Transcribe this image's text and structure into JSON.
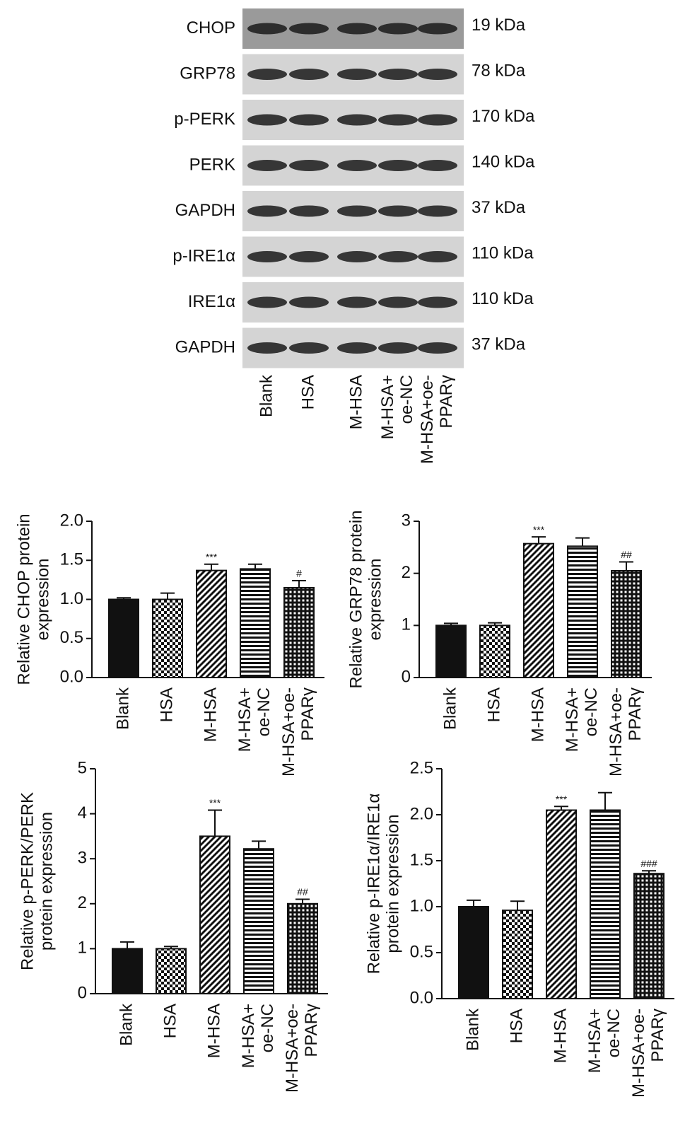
{
  "blot": {
    "rows": [
      {
        "label": "CHOP",
        "size": "19 kDa"
      },
      {
        "label": "GRP78",
        "size": "78 kDa"
      },
      {
        "label": "p-PERK",
        "size": "170 kDa"
      },
      {
        "label": "PERK",
        "size": "140 kDa"
      },
      {
        "label": "GAPDH",
        "size": "37 kDa"
      },
      {
        "label": "p-IRE1α",
        "size": "110 kDa"
      },
      {
        "label": "IRE1α",
        "size": "110 kDa"
      },
      {
        "label": "GAPDH",
        "size": "37 kDa"
      }
    ],
    "lanes": [
      [
        "Blank"
      ],
      [
        "HSA"
      ],
      [
        "M-HSA"
      ],
      [
        "M-HSA+",
        "oe-NC"
      ],
      [
        "M-HSA+oe-",
        "PPARγ"
      ]
    ]
  },
  "chart_data": [
    {
      "type": "bar",
      "ylabel": [
        "Relative CHOP protein",
        "expression"
      ],
      "categories": [
        [
          "Blank"
        ],
        [
          "HSA"
        ],
        [
          "M-HSA"
        ],
        [
          "M-HSA+",
          "oe-NC"
        ],
        [
          "M-HSA+oe-",
          "PPARγ"
        ]
      ],
      "values": [
        1.0,
        1.0,
        1.37,
        1.39,
        1.15
      ],
      "errors": [
        0.02,
        0.08,
        0.08,
        0.06,
        0.09
      ],
      "fills": [
        "solid",
        "checker",
        "diagonal",
        "horizontal",
        "grid"
      ],
      "annotations": [
        {
          "index": 2,
          "text": "***"
        },
        {
          "index": 4,
          "text": "#"
        }
      ],
      "ylim": [
        0,
        2
      ],
      "yticks": [
        {
          "value": 0,
          "label": "0.0"
        },
        0.5,
        {
          "value": 1,
          "label": "1.0"
        },
        1.5,
        {
          "value": 2,
          "label": "2.0"
        }
      ]
    },
    {
      "type": "bar",
      "ylabel": [
        "Relative GRP78 protein",
        "expression"
      ],
      "categories": [
        [
          "Blank"
        ],
        [
          "HSA"
        ],
        [
          "M-HSA"
        ],
        [
          "M-HSA+",
          "oe-NC"
        ],
        [
          "M-HSA+oe-",
          "PPARγ"
        ]
      ],
      "values": [
        1.0,
        1.0,
        2.57,
        2.52,
        2.05
      ],
      "errors": [
        0.04,
        0.05,
        0.13,
        0.16,
        0.17
      ],
      "fills": [
        "solid",
        "checker",
        "diagonal",
        "horizontal",
        "grid"
      ],
      "annotations": [
        {
          "index": 2,
          "text": "***"
        },
        {
          "index": 4,
          "text": "##"
        }
      ],
      "ylim": [
        0,
        3
      ],
      "yticks": [
        0,
        1,
        2,
        3
      ]
    },
    {
      "type": "bar",
      "ylabel": [
        "Relative p-PERK/PERK",
        "protein expression"
      ],
      "categories": [
        [
          "Blank"
        ],
        [
          "HSA"
        ],
        [
          "M-HSA"
        ],
        [
          "M-HSA+",
          "oe-NC"
        ],
        [
          "M-HSA+oe-",
          "PPARγ"
        ]
      ],
      "values": [
        1.0,
        1.0,
        3.5,
        3.22,
        2.0
      ],
      "errors": [
        0.15,
        0.05,
        0.58,
        0.17,
        0.1
      ],
      "fills": [
        "solid",
        "checker",
        "diagonal",
        "horizontal",
        "grid"
      ],
      "annotations": [
        {
          "index": 2,
          "text": "***"
        },
        {
          "index": 4,
          "text": "##"
        }
      ],
      "ylim": [
        0,
        5
      ],
      "yticks": [
        0,
        1,
        2,
        3,
        4,
        5
      ]
    },
    {
      "type": "bar",
      "ylabel": [
        "Relative p-IRE1α/IRE1α",
        "protein expression"
      ],
      "categories": [
        [
          "Blank"
        ],
        [
          "HSA"
        ],
        [
          "M-HSA"
        ],
        [
          "M-HSA+",
          "oe-NC"
        ],
        [
          "M-HSA+oe-",
          "PPARγ"
        ]
      ],
      "values": [
        1.0,
        0.96,
        2.05,
        2.05,
        1.36
      ],
      "errors": [
        0.07,
        0.1,
        0.04,
        0.19,
        0.03
      ],
      "fills": [
        "solid",
        "checker",
        "diagonal",
        "horizontal",
        "grid"
      ],
      "annotations": [
        {
          "index": 2,
          "text": "***"
        },
        {
          "index": 4,
          "text": "###"
        }
      ],
      "ylim": [
        0,
        2.5
      ],
      "yticks": [
        {
          "value": 0,
          "label": "0.0"
        },
        0.5,
        {
          "value": 1,
          "label": "1.0"
        },
        1.5,
        {
          "value": 2,
          "label": "2.0"
        },
        2.5
      ]
    }
  ]
}
